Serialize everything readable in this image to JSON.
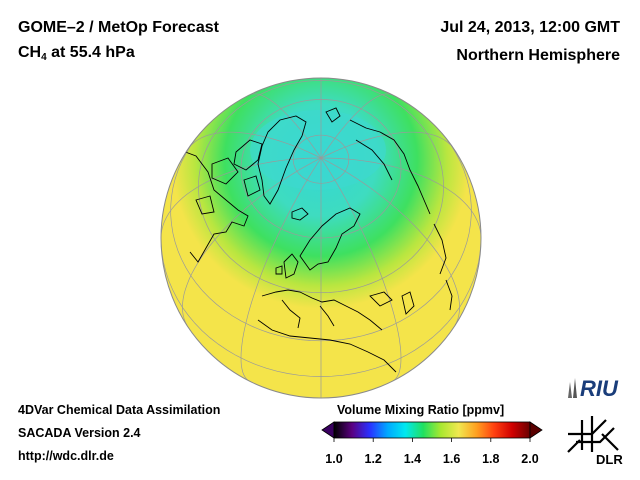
{
  "header": {
    "title": "GOME–2 / MetOp Forecast",
    "species_main": "CH",
    "species_sub": "4",
    "species_rest": " at 55.4 hPa",
    "date": "Jul 24, 2013, 12:00 GMT",
    "region": "Northern Hemisphere"
  },
  "footer": {
    "line1": "4DVar Chemical Data Assimilation",
    "line2": "SACADA Version 2.4",
    "line3": "http://wdc.dlr.de"
  },
  "colorbar": {
    "title": "Volume Mixing Ratio [ppmv]",
    "range": [
      1.0,
      2.0
    ],
    "ticks": [
      "1.0",
      "1.2",
      "1.4",
      "1.6",
      "1.8",
      "2.0"
    ],
    "colors": [
      "#000000",
      "#5a0080",
      "#2a30ff",
      "#00a8ff",
      "#00e8f0",
      "#20e060",
      "#a8e830",
      "#f0e850",
      "#ffa020",
      "#ff4010",
      "#d00000",
      "#6a0000"
    ]
  },
  "logos": {
    "riu": "RIU",
    "dlr": "DLR"
  },
  "map": {
    "projection": "orthographic",
    "field_colors": {
      "low": "#33d6d6",
      "mid": "#3ee060",
      "high": "#f4e44a"
    }
  }
}
